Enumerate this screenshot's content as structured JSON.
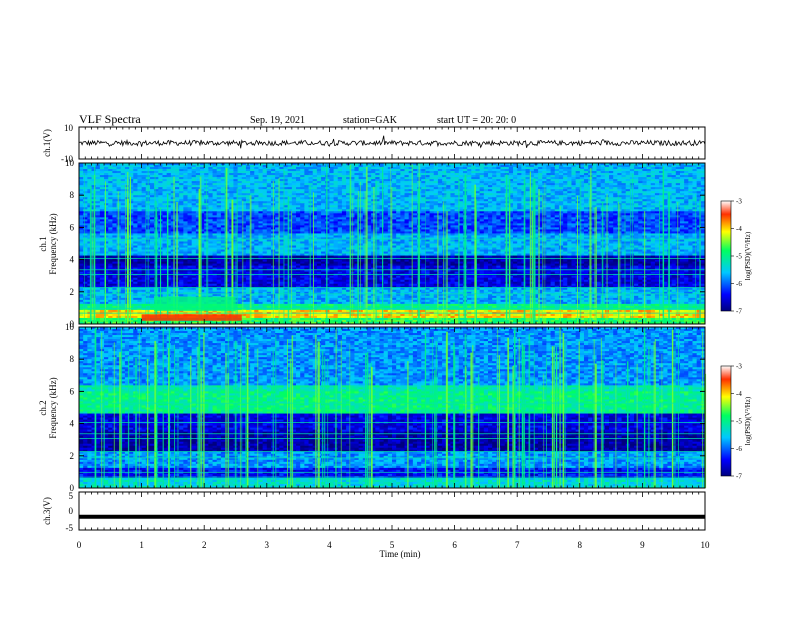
{
  "header": {
    "title": "VLF Spectra",
    "date": "Sep. 19, 2021",
    "station": "station=GAK",
    "start": "start UT = 20: 20: 0"
  },
  "chart_data": [
    {
      "type": "line",
      "name": "ch1-waveform",
      "ylabel": "ch.1(V)",
      "ylim": [
        -10,
        10
      ],
      "yticks": [
        "10",
        "-10"
      ],
      "xlim": [
        0,
        10
      ]
    },
    {
      "type": "heatmap",
      "name": "ch1-spectrogram",
      "ylabel": "ch.1\nFrequency (kHz)",
      "ylabel_line1": "ch.1",
      "ylabel_line2": "Frequency (kHz)",
      "ylim": [
        0,
        10
      ],
      "yticks": [
        "0",
        "2",
        "4",
        "6",
        "8",
        "10"
      ],
      "xlim": [
        0,
        10
      ],
      "colorbar": {
        "label": "log(PSD)(V²/Hz)",
        "ticks": [
          "-3",
          "-4",
          "-5",
          "-6",
          "-7"
        ],
        "range": [
          -7,
          -3
        ]
      }
    },
    {
      "type": "heatmap",
      "name": "ch2-spectrogram",
      "ylabel": "ch.2\nFrequency (kHz)",
      "ylabel_line1": "ch.2",
      "ylabel_line2": "Frequency (kHz)",
      "ylim": [
        0,
        10
      ],
      "yticks": [
        "0",
        "2",
        "4",
        "6",
        "8",
        "10"
      ],
      "xlim": [
        0,
        10
      ],
      "colorbar": {
        "label": "log(PSD)(V²/Hz)",
        "ticks": [
          "-3",
          "-4",
          "-5",
          "-6",
          "-7"
        ],
        "range": [
          -7,
          -3
        ]
      }
    },
    {
      "type": "line",
      "name": "ch3-waveform",
      "ylabel": "ch.3(V)",
      "ylim": [
        -5,
        5
      ],
      "yticks": [
        "5",
        "0",
        "-5"
      ],
      "xlim": [
        0,
        10
      ],
      "level": -1.5
    }
  ],
  "xaxis": {
    "label": "Time (min)",
    "ticks": [
      "0",
      "1",
      "2",
      "3",
      "4",
      "5",
      "6",
      "7",
      "8",
      "9",
      "10"
    ],
    "range": [
      0,
      10
    ]
  },
  "colors": {
    "low": "#00007f",
    "mid": "#00c8ff",
    "high": "#ffff00",
    "max": "#ff0000",
    "ch3_line": "#000000"
  }
}
